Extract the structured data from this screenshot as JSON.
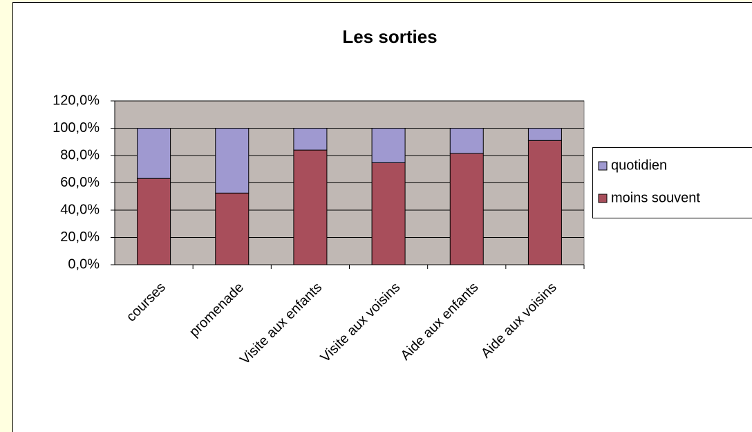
{
  "chart_data": {
    "type": "bar",
    "stacked": true,
    "title": "Les sorties",
    "categories": [
      "courses",
      "promenade",
      "Visite aux enfants",
      "Visite aux voisins",
      "Aide aux enfants",
      "Aide aux voisins"
    ],
    "series": [
      {
        "name": "quotidien",
        "color": "#9f99d0",
        "values": [
          36.8,
          47.5,
          16,
          25.3,
          18.5,
          9
        ]
      },
      {
        "name": "moins souvent",
        "color": "#a84e5b",
        "values": [
          63.2,
          52.5,
          84,
          74.7,
          81.5,
          91
        ]
      }
    ],
    "ylim": [
      0,
      120
    ],
    "yticks": [
      {
        "value": 0,
        "label": "0,0%"
      },
      {
        "value": 20,
        "label": "20,0%"
      },
      {
        "value": 40,
        "label": "40,0%"
      },
      {
        "value": 60,
        "label": "60,0%"
      },
      {
        "value": 80,
        "label": "80,0%"
      },
      {
        "value": 100,
        "label": "100,0%"
      },
      {
        "value": 120,
        "label": "120,0%"
      }
    ],
    "grid": true,
    "legend": "right"
  }
}
